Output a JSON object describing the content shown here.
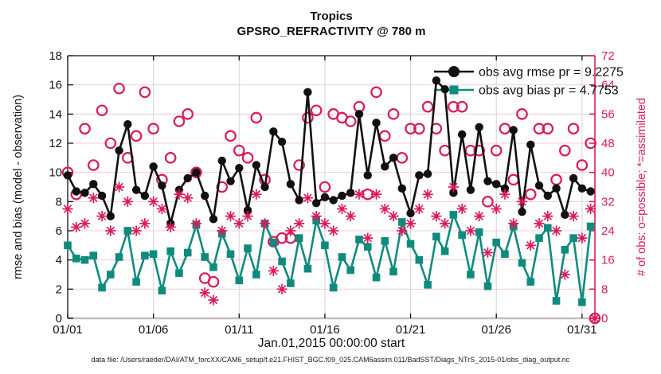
{
  "title": {
    "line1": "Tropics",
    "line2": "GPSRO_REFRACTIVITY @ 780 m"
  },
  "footer": "data file: /Users/raeder/DAI/ATM_forcXX/CAM6_setup/f.e21.FHIST_BGC.f09_025.CAM6assim.011/BadSST/Diags_NTrS_2015-01/obs_diag_output.nc",
  "stats": {
    "obs_avg_rmse_pr": 9.2275,
    "obs_avg_bias_pr": 4.7753
  },
  "legend": [
    {
      "label": "obs avg rmse pr = 9.2275",
      "series": "rmse",
      "marker": "filled-circle"
    },
    {
      "label": "obs avg bias pr = 4.7753",
      "series": "bias",
      "marker": "filled-square"
    }
  ],
  "colors": {
    "rmse": "#111111",
    "bias": "#0f8b7e",
    "obs": "#da1a5c",
    "grid_h": "#f5ccd9",
    "grid_v": "#d4d4d4",
    "axis_bottom": "#c7bcbf",
    "axis_left": "#111111",
    "axis_right": "#da1a5c"
  },
  "chart_data": {
    "type": "line",
    "title": [
      "Tropics",
      "GPSRO_REFRACTIVITY @ 780 m"
    ],
    "xlabel": "Jan.01,2015 00:00:00 start",
    "ylabel_left": "rmse and bias (model - observation)",
    "ylabel_right": "# of obs: o=possible; *=assimilated",
    "grid": true,
    "legend_position": "top-right-inside",
    "x_ticks": {
      "values": [
        1,
        6,
        11,
        16,
        21,
        26,
        31
      ],
      "labels": [
        "01/01",
        "01/06",
        "01/11",
        "01/16",
        "01/21",
        "01/26",
        "01/31"
      ]
    },
    "x_range": [
      1,
      31.75
    ],
    "y_left": {
      "min": 0,
      "max": 18,
      "ticks": [
        0,
        2,
        4,
        6,
        8,
        10,
        12,
        14,
        16,
        18
      ]
    },
    "y_right": {
      "min": 0,
      "max": 72,
      "ticks": [
        0,
        8,
        16,
        24,
        32,
        40,
        48,
        56,
        64,
        72
      ]
    },
    "x": [
      1,
      1.5,
      2,
      2.5,
      3,
      3.5,
      4,
      4.5,
      5,
      5.5,
      6,
      6.5,
      7,
      7.5,
      8,
      8.5,
      9,
      9.5,
      10,
      10.5,
      11,
      11.5,
      12,
      12.5,
      13,
      13.5,
      14,
      14.5,
      15,
      15.5,
      16,
      16.5,
      17,
      17.5,
      18,
      18.5,
      19,
      19.5,
      20,
      20.5,
      21,
      21.5,
      22,
      22.5,
      23,
      23.5,
      24,
      24.5,
      25,
      25.5,
      26,
      26.5,
      27,
      27.5,
      28,
      28.5,
      29,
      29.5,
      30,
      30.5,
      31,
      31.5,
      31.75
    ],
    "series": [
      {
        "name": "obs avg rmse pr = 9.2275",
        "axis": "left",
        "marker": "filled-circle",
        "line": true,
        "values": [
          9.8,
          8.7,
          8.6,
          9.2,
          8.4,
          7.0,
          11.5,
          13.3,
          8.8,
          8.4,
          10.4,
          9.1,
          6.5,
          8.8,
          9.6,
          10.0,
          8.4,
          6.8,
          10.8,
          9.4,
          10.3,
          7.4,
          10.5,
          9.0,
          12.8,
          12.1,
          9.2,
          8.1,
          15.5,
          7.9,
          8.3,
          8.1,
          8.4,
          8.6,
          14.0,
          9.8,
          13.4,
          10.4,
          11.0,
          8.9,
          7.2,
          9.8,
          9.9,
          16.3,
          15.7,
          8.6,
          12.6,
          8.8,
          13.1,
          9.4,
          9.2,
          8.9,
          12.9,
          7.3,
          11.9,
          9.1,
          8.4,
          8.9,
          7.1,
          9.6,
          8.9,
          8.7,
          null
        ]
      },
      {
        "name": "obs avg bias pr = 4.7753",
        "axis": "left",
        "marker": "filled-square",
        "line": true,
        "values": [
          5.0,
          4.1,
          4.0,
          4.3,
          2.1,
          3.0,
          4.2,
          6.0,
          2.5,
          4.3,
          4.4,
          1.9,
          4.6,
          3.1,
          4.5,
          6.4,
          4.2,
          3.5,
          5.8,
          4.4,
          2.6,
          4.8,
          3.0,
          6.5,
          5.2,
          3.9,
          2.4,
          5.5,
          3.4,
          6.7,
          5.0,
          2.1,
          4.2,
          3.3,
          5.4,
          4.9,
          2.8,
          5.3,
          3.2,
          6.6,
          5.1,
          4.0,
          2.3,
          5.6,
          4.6,
          7.1,
          5.7,
          3.0,
          5.9,
          2.2,
          5.2,
          4.4,
          6.3,
          3.8,
          2.5,
          5.5,
          6.2,
          1.2,
          4.7,
          5.5,
          1.1,
          6.3,
          null
        ]
      },
      {
        "name": "# of obs possible",
        "axis": "right",
        "marker": "open-circle",
        "line": false,
        "values": [
          40,
          34,
          52,
          42,
          57,
          48,
          63,
          44,
          50,
          62,
          52,
          38,
          44,
          54,
          56,
          40,
          11,
          10,
          36,
          50,
          46,
          44,
          55,
          38,
          21,
          22,
          22,
          42,
          55,
          57,
          36,
          56,
          55,
          54,
          58,
          34,
          62,
          50,
          56,
          44,
          52,
          52,
          58,
          52,
          46,
          58,
          58,
          46,
          46,
          32,
          46,
          52,
          38,
          56,
          34,
          52,
          52,
          38,
          46,
          52,
          42,
          48,
          0
        ]
      },
      {
        "name": "# of obs assimilated",
        "axis": "right",
        "marker": "asterisk",
        "line": false,
        "values": [
          30,
          25,
          26,
          33,
          28,
          24,
          36,
          32,
          24,
          26,
          32,
          30,
          25,
          34,
          33,
          26,
          7,
          5,
          24,
          28,
          26,
          28,
          34,
          26,
          13,
          8,
          24,
          26,
          33,
          28,
          26,
          24,
          30,
          28,
          34,
          22,
          34,
          30,
          28,
          24,
          26,
          30,
          34,
          28,
          26,
          36,
          30,
          24,
          28,
          18,
          30,
          34,
          26,
          32,
          20,
          26,
          28,
          24,
          12,
          28,
          22,
          30,
          0
        ]
      }
    ]
  }
}
